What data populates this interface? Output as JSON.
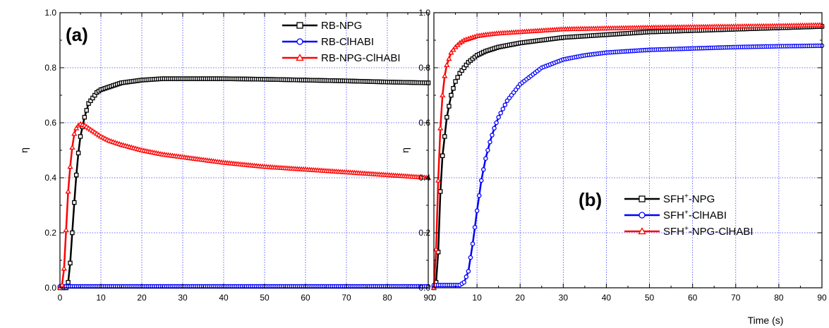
{
  "chart_data": [
    {
      "type": "line",
      "panel_label": "(a)",
      "xlabel": "",
      "ylabel": "η",
      "xlim": [
        0,
        90
      ],
      "ylim": [
        0,
        1.0
      ],
      "x_ticks": [
        "0",
        "10",
        "20",
        "30",
        "40",
        "50",
        "60",
        "70",
        "80",
        "90"
      ],
      "y_ticks": [
        "0.0",
        "0.2",
        "0.4",
        "0.6",
        "0.8",
        "1.0"
      ],
      "grid": true,
      "legend_position": "top-right",
      "series": [
        {
          "name": "RB-NPG",
          "color": "#000000",
          "marker": "square",
          "x": [
            0,
            1,
            1.5,
            2,
            2.5,
            3,
            3.5,
            4,
            4.5,
            5,
            6,
            7,
            8,
            9,
            10,
            12,
            15,
            20,
            25,
            30,
            40,
            50,
            60,
            70,
            80,
            90
          ],
          "y": [
            0,
            0,
            0,
            0.02,
            0.09,
            0.2,
            0.31,
            0.41,
            0.49,
            0.55,
            0.62,
            0.67,
            0.69,
            0.71,
            0.72,
            0.73,
            0.745,
            0.755,
            0.76,
            0.76,
            0.76,
            0.758,
            0.755,
            0.752,
            0.748,
            0.745
          ]
        },
        {
          "name": "RB-ClHABI",
          "color": "#0000ff",
          "marker": "circle",
          "x": [
            0,
            10,
            20,
            30,
            40,
            50,
            60,
            70,
            80,
            90
          ],
          "y": [
            0.005,
            0.005,
            0.005,
            0.005,
            0.005,
            0.005,
            0.005,
            0.005,
            0.005,
            0.005
          ]
        },
        {
          "name": "RB-NPG-ClHABI",
          "color": "#ff0000",
          "marker": "triangle",
          "x": [
            0,
            0.5,
            1,
            1.5,
            2,
            2.5,
            3,
            3.5,
            4,
            4.5,
            5,
            6,
            7,
            8,
            9,
            10,
            12,
            15,
            20,
            25,
            30,
            40,
            50,
            60,
            70,
            80,
            90
          ],
          "y": [
            0,
            0.01,
            0.07,
            0.21,
            0.35,
            0.44,
            0.51,
            0.56,
            0.58,
            0.59,
            0.595,
            0.59,
            0.58,
            0.57,
            0.56,
            0.55,
            0.535,
            0.52,
            0.5,
            0.485,
            0.475,
            0.455,
            0.44,
            0.43,
            0.42,
            0.41,
            0.4
          ]
        }
      ]
    },
    {
      "type": "line",
      "panel_label": "(b)",
      "xlabel": "Time (s)",
      "ylabel": "η",
      "xlim": [
        0,
        90
      ],
      "ylim": [
        0,
        1.0
      ],
      "x_ticks": [
        "0",
        "10",
        "20",
        "30",
        "40",
        "50",
        "60",
        "70",
        "80",
        "90"
      ],
      "y_ticks": [
        "0.0",
        "0.2",
        "0.4",
        "0.6",
        "0.8",
        "1.0"
      ],
      "grid": true,
      "legend_position": "bottom-right",
      "series": [
        {
          "name": "SFH",
          "name_sup": "+",
          "name_suffix": "-NPG",
          "color": "#000000",
          "marker": "square",
          "x": [
            0,
            0.5,
            1,
            1.5,
            2,
            3,
            4,
            5,
            6,
            7,
            8,
            10,
            12,
            15,
            20,
            25,
            30,
            40,
            50,
            60,
            70,
            80,
            90
          ],
          "y": [
            0,
            0.02,
            0.13,
            0.35,
            0.48,
            0.62,
            0.7,
            0.75,
            0.78,
            0.8,
            0.82,
            0.845,
            0.86,
            0.875,
            0.89,
            0.9,
            0.91,
            0.92,
            0.93,
            0.935,
            0.94,
            0.945,
            0.95
          ]
        },
        {
          "name": "SFH",
          "name_sup": "+",
          "name_suffix": "-ClHABI",
          "color": "#0000ff",
          "marker": "circle",
          "x": [
            0,
            5,
            6,
            7,
            8,
            9,
            10,
            11,
            12,
            13,
            14,
            15,
            17,
            20,
            25,
            30,
            35,
            40,
            50,
            60,
            70,
            80,
            90
          ],
          "y": [
            0.01,
            0.01,
            0.01,
            0.02,
            0.06,
            0.16,
            0.28,
            0.39,
            0.47,
            0.53,
            0.58,
            0.62,
            0.68,
            0.74,
            0.8,
            0.83,
            0.845,
            0.855,
            0.865,
            0.87,
            0.875,
            0.878,
            0.88
          ]
        },
        {
          "name": "SFH",
          "name_sup": "+",
          "name_suffix": "-NPG-ClHABI",
          "color": "#ff0000",
          "marker": "triangle",
          "x": [
            0,
            0.5,
            1,
            1.5,
            2,
            2.5,
            3,
            4,
            5,
            6,
            7,
            8,
            10,
            12,
            15,
            20,
            25,
            30,
            40,
            50,
            60,
            70,
            80,
            90
          ],
          "y": [
            0,
            0.14,
            0.39,
            0.58,
            0.7,
            0.77,
            0.81,
            0.855,
            0.875,
            0.89,
            0.9,
            0.905,
            0.915,
            0.92,
            0.925,
            0.93,
            0.935,
            0.94,
            0.943,
            0.946,
            0.948,
            0.95,
            0.952,
            0.955
          ]
        }
      ]
    }
  ]
}
